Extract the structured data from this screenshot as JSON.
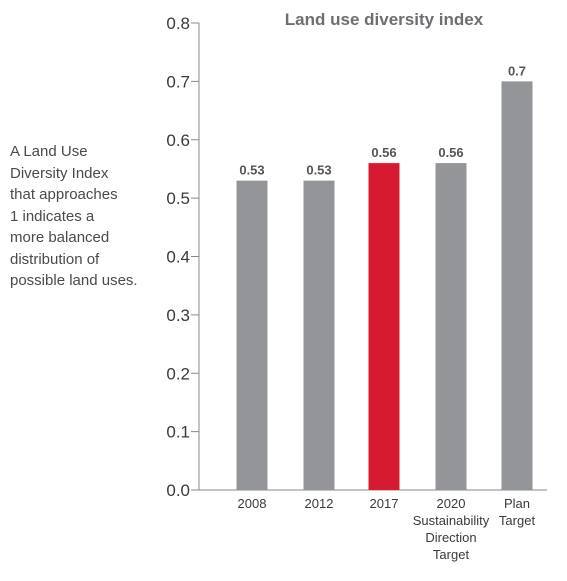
{
  "chart_data": {
    "type": "bar",
    "title": "Land use diversity index",
    "categories": [
      "2008",
      "2012",
      "2017",
      "2020\nSustainability\nDirection\nTarget",
      "Plan\nTarget"
    ],
    "values": [
      0.53,
      0.53,
      0.56,
      0.56,
      0.7
    ],
    "data_labels": [
      "0.53",
      "0.53",
      "0.56",
      "0.56",
      "0.7"
    ],
    "highlight_index": 2,
    "ylim": [
      0,
      0.8
    ],
    "yticks": [
      0.0,
      0.1,
      0.2,
      0.3,
      0.4,
      0.5,
      0.6,
      0.7,
      0.8
    ],
    "ytick_labels": [
      "0.0",
      "0.1",
      "0.2",
      "0.3",
      "0.4",
      "0.5",
      "0.6",
      "0.7",
      "0.8"
    ],
    "xlabel": "",
    "ylabel": "",
    "grid": false,
    "legend": "none"
  },
  "annotation": {
    "text": "A Land Use\nDiversity Index\nthat approaches\n1 indicates a\nmore balanced\ndistribution of\npossible land uses."
  },
  "colors": {
    "bar": "#939598",
    "highlight": "#d71a32",
    "axis": "#8a8a8a",
    "text": "#3a3a3a",
    "value_label": "#555555"
  }
}
